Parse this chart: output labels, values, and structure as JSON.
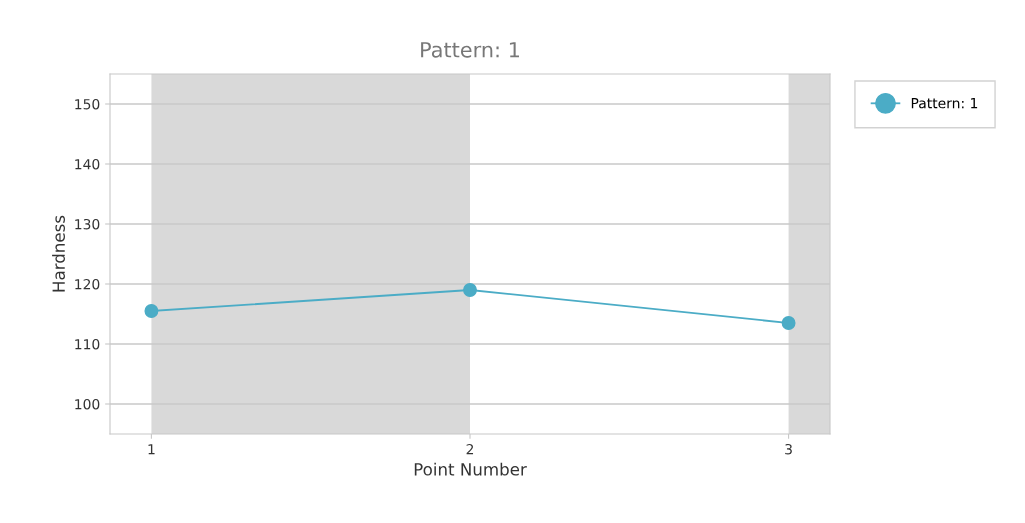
{
  "chart_data": {
    "type": "line",
    "title": "Pattern: 1",
    "xlabel": "Point Number",
    "ylabel": "Hardness",
    "x": [
      1,
      2,
      3
    ],
    "series": [
      {
        "name": "Pattern: 1",
        "color": "#4bacc6",
        "values": [
          115.5,
          119,
          113.5
        ]
      }
    ],
    "xlim": [
      0.87,
      3.13
    ],
    "xticks": [
      1,
      2,
      3
    ],
    "ylim": [
      95,
      155
    ],
    "yticks": [
      100,
      110,
      120,
      130,
      140,
      150
    ],
    "bands": [
      {
        "axis": "x",
        "from": 1,
        "to": 2,
        "color": "#d9d9d9"
      },
      {
        "axis": "x",
        "from": 3,
        "to": 3.13,
        "color": "#d9d9d9"
      }
    ],
    "grid": "y",
    "legend": "top right",
    "marker": "circle",
    "line_style": "solid"
  }
}
